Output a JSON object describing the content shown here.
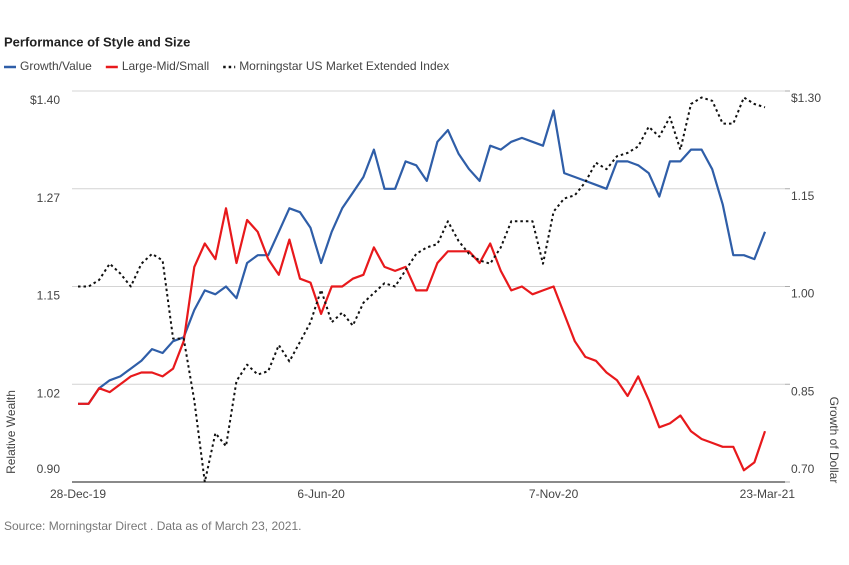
{
  "chart_data": {
    "type": "line",
    "title": "Performance of Style and Size",
    "ylabel": "Relative Wealth",
    "y2label": "Growth of Dollar",
    "source": "Source: Morningstar Direct . Data as of March 23, 2021.",
    "categories": [
      "28-Dec-19",
      null,
      null,
      null,
      null,
      null,
      null,
      null,
      null,
      null,
      null,
      null,
      null,
      null,
      null,
      null,
      null,
      null,
      null,
      null,
      null,
      null,
      null,
      "6-Jun-20",
      null,
      null,
      null,
      null,
      null,
      null,
      null,
      null,
      null,
      null,
      null,
      null,
      null,
      null,
      null,
      null,
      null,
      null,
      null,
      null,
      null,
      "7-Nov-20",
      null,
      null,
      null,
      null,
      null,
      null,
      null,
      null,
      null,
      null,
      null,
      null,
      null,
      null,
      null,
      null,
      null,
      null,
      null,
      "23-Mar-21"
    ],
    "ylim": [
      0.9,
      1.4
    ],
    "yticks": [
      {
        "value": 1.4,
        "label": "$1.40"
      },
      {
        "value": 1.275,
        "label": "1.27"
      },
      1.15,
      {
        "value": 1.025,
        "label": "1.02"
      },
      {
        "value": 0.9,
        "label": "0.90"
      }
    ],
    "y2lim": [
      0.7,
      1.3
    ],
    "y2ticks": [
      {
        "value": 1.3,
        "label": "$1.30"
      },
      1.15,
      {
        "value": 1.0,
        "label": "1.00"
      },
      0.85,
      {
        "value": 0.7,
        "label": "0.70"
      }
    ],
    "grid": true,
    "series": [
      {
        "name": "Growth/Value",
        "color": "#2f5ea8",
        "line_style": "solid",
        "values": [
          1.0,
          1.0,
          1.02,
          1.03,
          1.035,
          1.045,
          1.055,
          1.07,
          1.065,
          1.08,
          1.085,
          1.12,
          1.145,
          1.14,
          1.15,
          1.135,
          1.18,
          1.19,
          1.19,
          1.22,
          1.25,
          1.245,
          1.225,
          1.18,
          1.22,
          1.25,
          1.27,
          1.29,
          1.325,
          1.275,
          1.275,
          1.31,
          1.305,
          1.285,
          1.335,
          1.35,
          1.32,
          1.3,
          1.285,
          1.33,
          1.325,
          1.335,
          1.34,
          1.335,
          1.33,
          1.375,
          1.295,
          1.29,
          1.285,
          1.28,
          1.275,
          1.31,
          1.31,
          1.305,
          1.295,
          1.265,
          1.31,
          1.31,
          1.325,
          1.325,
          1.3,
          1.255,
          1.19,
          1.19,
          1.185,
          1.22
        ]
      },
      {
        "name": "Large-Mid/Small",
        "color": "#e8191c",
        "line_style": "solid",
        "values": [
          1.0,
          1.0,
          1.02,
          1.015,
          1.025,
          1.035,
          1.04,
          1.04,
          1.035,
          1.045,
          1.08,
          1.175,
          1.205,
          1.185,
          1.25,
          1.18,
          1.235,
          1.22,
          1.185,
          1.165,
          1.21,
          1.16,
          1.155,
          1.115,
          1.15,
          1.15,
          1.16,
          1.165,
          1.2,
          1.175,
          1.17,
          1.175,
          1.145,
          1.145,
          1.18,
          1.195,
          1.195,
          1.195,
          1.18,
          1.205,
          1.17,
          1.145,
          1.15,
          1.14,
          1.145,
          1.15,
          1.115,
          1.08,
          1.06,
          1.055,
          1.04,
          1.03,
          1.01,
          1.035,
          1.005,
          0.97,
          0.975,
          0.985,
          0.965,
          0.955,
          0.95,
          0.945,
          0.945,
          0.915,
          0.925,
          0.965
        ]
      },
      {
        "name": "Morningstar US Market Extended Index",
        "color": "#111111",
        "line_style": "dotted",
        "axis": "y2",
        "values": [
          1.0,
          1.0,
          1.01,
          1.035,
          1.02,
          1.0,
          1.035,
          1.05,
          1.04,
          0.92,
          0.92,
          0.825,
          0.7,
          0.775,
          0.755,
          0.855,
          0.88,
          0.865,
          0.87,
          0.91,
          0.885,
          0.915,
          0.945,
          0.995,
          0.945,
          0.96,
          0.94,
          0.975,
          0.99,
          1.005,
          1.0,
          1.025,
          1.05,
          1.06,
          1.065,
          1.1,
          1.07,
          1.05,
          1.04,
          1.035,
          1.06,
          1.1,
          1.1,
          1.1,
          1.035,
          1.115,
          1.135,
          1.14,
          1.16,
          1.19,
          1.18,
          1.2,
          1.205,
          1.215,
          1.245,
          1.23,
          1.26,
          1.21,
          1.28,
          1.29,
          1.285,
          1.25,
          1.25,
          1.29,
          1.28,
          1.275
        ]
      }
    ]
  }
}
